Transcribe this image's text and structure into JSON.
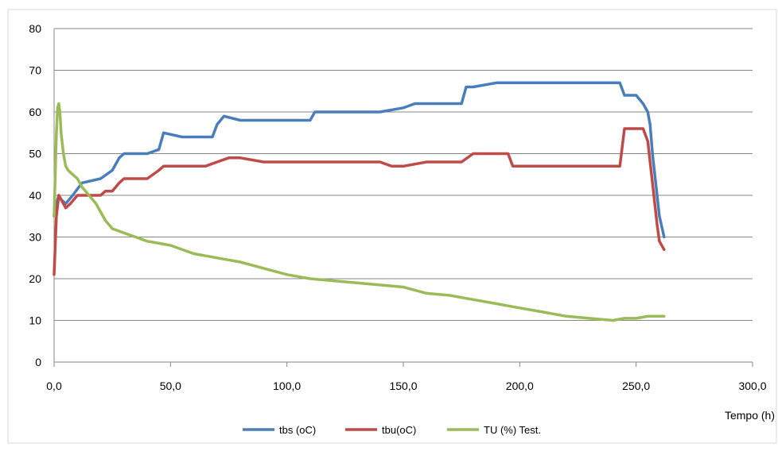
{
  "chart_data": {
    "type": "line",
    "title": "",
    "xlabel": "Tempo (h)",
    "ylabel": "",
    "xlim": [
      0,
      300
    ],
    "ylim": [
      0,
      80
    ],
    "x_ticks": [
      0,
      50,
      100,
      150,
      200,
      250,
      300
    ],
    "x_tick_labels": [
      "0,0",
      "50,0",
      "100,0",
      "150,0",
      "200,0",
      "250,0",
      "300,0"
    ],
    "y_ticks": [
      0,
      10,
      20,
      30,
      40,
      50,
      60,
      70,
      80
    ],
    "y_tick_labels": [
      "0",
      "10",
      "20",
      "30",
      "40",
      "50",
      "60",
      "70",
      "80"
    ],
    "grid": "horizontal",
    "legend_position": "bottom",
    "series": [
      {
        "name": "tbs (oC)",
        "color": "#4a7ebb",
        "x": [
          0,
          1,
          2,
          3,
          5,
          8,
          12,
          20,
          25,
          28,
          30,
          40,
          45,
          47,
          55,
          68,
          70,
          73,
          80,
          90,
          100,
          110,
          112,
          120,
          130,
          140,
          150,
          155,
          160,
          170,
          175,
          177,
          180,
          190,
          200,
          210,
          220,
          230,
          240,
          243,
          245,
          250,
          253,
          255,
          256,
          257,
          258,
          259,
          260,
          262
        ],
        "y": [
          35,
          38,
          40,
          39,
          38,
          40,
          43,
          44,
          46,
          49,
          50,
          50,
          51,
          55,
          54,
          54,
          57,
          59,
          58,
          58,
          58,
          58,
          60,
          60,
          60,
          60,
          61,
          62,
          62,
          62,
          62,
          66,
          66,
          67,
          67,
          67,
          67,
          67,
          67,
          67,
          64,
          64,
          62,
          60,
          57,
          50,
          45,
          40,
          35,
          30
        ]
      },
      {
        "name": "tbu(oC)",
        "color": "#be4b48",
        "x": [
          0,
          1,
          2,
          3,
          5,
          7,
          10,
          15,
          20,
          22,
          25,
          28,
          30,
          35,
          40,
          45,
          47,
          50,
          55,
          60,
          65,
          70,
          75,
          80,
          90,
          100,
          110,
          120,
          130,
          140,
          145,
          150,
          160,
          170,
          175,
          180,
          190,
          195,
          197,
          200,
          210,
          220,
          230,
          240,
          243,
          245,
          250,
          253,
          255,
          256,
          257,
          258,
          259,
          260,
          262
        ],
        "y": [
          21,
          35,
          40,
          39,
          37,
          38,
          40,
          40,
          40,
          41,
          41,
          43,
          44,
          44,
          44,
          46,
          47,
          47,
          47,
          47,
          47,
          48,
          49,
          49,
          48,
          48,
          48,
          48,
          48,
          48,
          47,
          47,
          48,
          48,
          48,
          50,
          50,
          50,
          47,
          47,
          47,
          47,
          47,
          47,
          47,
          56,
          56,
          56,
          53,
          48,
          43,
          38,
          33,
          29,
          27
        ]
      },
      {
        "name": "TU (%) Test.",
        "color": "#9bbb59",
        "x": [
          0,
          1,
          1.5,
          2,
          2.5,
          3,
          4,
          5,
          6,
          8,
          10,
          12,
          15,
          18,
          20,
          22,
          25,
          30,
          35,
          40,
          45,
          50,
          60,
          70,
          80,
          90,
          100,
          110,
          120,
          130,
          140,
          150,
          160,
          170,
          180,
          190,
          200,
          210,
          220,
          230,
          240,
          245,
          250,
          255,
          262
        ],
        "y": [
          35,
          55,
          61,
          62,
          60,
          55,
          50,
          47,
          46,
          45,
          44,
          42,
          40,
          38,
          36,
          34,
          32,
          31,
          30,
          29,
          28.5,
          28,
          26,
          25,
          24,
          22.5,
          21,
          20,
          19.5,
          19,
          18.5,
          18,
          16.5,
          16,
          15,
          14,
          13,
          12,
          11,
          10.5,
          10,
          10.5,
          10.5,
          11,
          11
        ]
      }
    ]
  }
}
